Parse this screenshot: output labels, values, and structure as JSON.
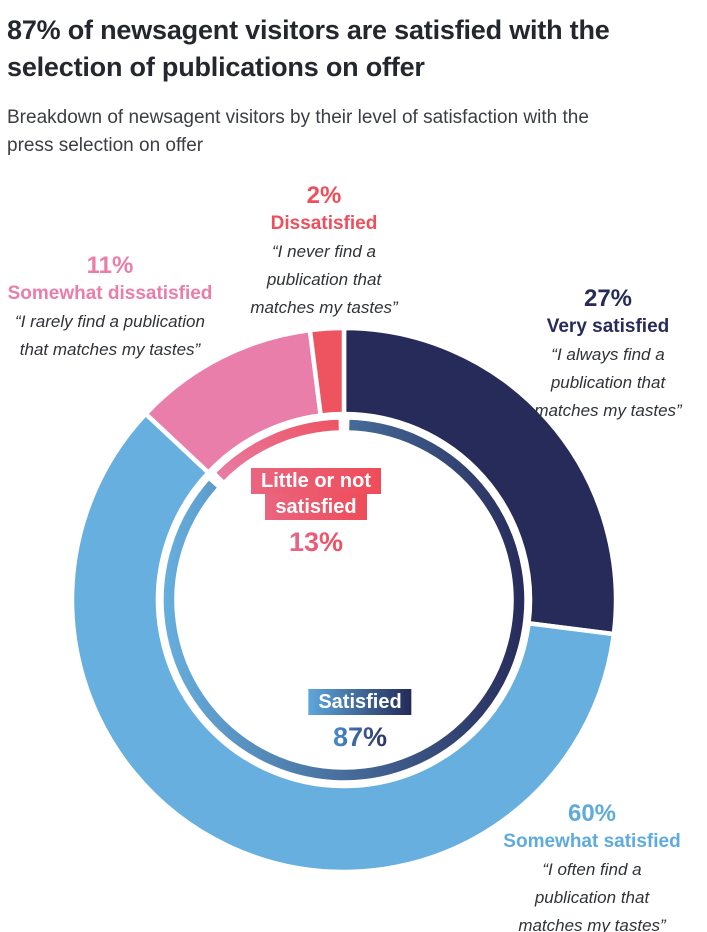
{
  "header": {
    "title": "87% of newsagent visitors are satisfied with the\nselection of publications on offer",
    "subtitle": "Breakdown of newsagent visitors by their level of satisfaction with the\npress selection on offer"
  },
  "chart_data": {
    "type": "pie",
    "variant": "donut",
    "unit": "%",
    "start_angle_deg": 0,
    "direction": "clockwise",
    "legend_position": "around",
    "segments": [
      {
        "label": "Very satisfied",
        "value": 27,
        "pct_label": "27%",
        "color": "#272b5a",
        "quote": "“I always find a\npublication that\nmatches my tastes”"
      },
      {
        "label": "Somewhat satisfied",
        "value": 60,
        "pct_label": "60%",
        "color": "#66afde",
        "quote": "“I often find a\npublication that\nmatches my tastes”"
      },
      {
        "label": "Somewhat dissatisfied",
        "value": 11,
        "pct_label": "11%",
        "color": "#e87ea9",
        "quote": "“I rarely find a publication\nthat matches my tastes”"
      },
      {
        "label": "Dissatisfied",
        "value": 2,
        "pct_label": "2%",
        "color": "#ee5360",
        "quote": "“I never find a\npublication that\nmatches my tastes”"
      }
    ],
    "groups": [
      {
        "label": "Satisfied",
        "value": 87,
        "pct_label": "87%",
        "line1": "Satisfied",
        "line2": "",
        "badge_gradient": [
          "#5ea7db",
          "#232a58"
        ],
        "pct_gradient": [
          "#4b8cc8",
          "#2b3166"
        ]
      },
      {
        "label": "Little or not satisfied",
        "value": 13,
        "pct_label": "13%",
        "line1": "Little or not",
        "line2": "satisfied",
        "badge_gradient": [
          "#e9657f",
          "#ef4c59"
        ],
        "pct_gradient": [
          "#e8688c",
          "#ee4f5c"
        ]
      }
    ],
    "arc_gradients": {
      "satisfied": [
        "#66afde",
        "#272b5a"
      ],
      "little_or_not": [
        "#e87ea9",
        "#ee5360"
      ]
    }
  }
}
